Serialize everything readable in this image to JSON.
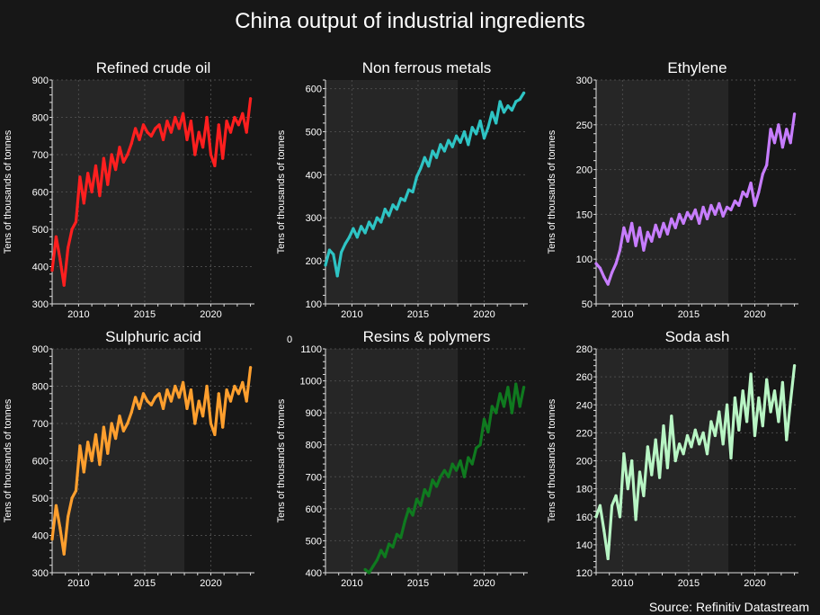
{
  "figure": {
    "title": "China output of industrial ingredients",
    "source": "Source: Refinitiv Datastream",
    "stray_label": "0",
    "background": "#171717",
    "shade_color": "#262626"
  },
  "chart_data": [
    {
      "type": "line",
      "title": "Refined crude oil",
      "ylabel": "Tens of thousands of tonnes",
      "color": "#ff1f1f",
      "xlim": [
        2008,
        2023.3
      ],
      "ylim": [
        300,
        900
      ],
      "yticks": [
        300,
        400,
        500,
        600,
        700,
        800,
        900
      ],
      "xticks": [
        2010,
        2015,
        2020
      ],
      "x": [
        2008.0,
        2008.3,
        2008.6,
        2008.9,
        2009.2,
        2009.5,
        2009.8,
        2010.1,
        2010.4,
        2010.7,
        2011.0,
        2011.3,
        2011.6,
        2011.9,
        2012.2,
        2012.5,
        2012.8,
        2013.1,
        2013.4,
        2013.7,
        2014.0,
        2014.3,
        2014.6,
        2014.9,
        2015.2,
        2015.5,
        2015.8,
        2016.1,
        2016.4,
        2016.7,
        2017.0,
        2017.3,
        2017.6,
        2017.9,
        2018.2,
        2018.5,
        2018.8,
        2019.1,
        2019.4,
        2019.7,
        2020.0,
        2020.3,
        2020.6,
        2020.9,
        2021.2,
        2021.5,
        2021.8,
        2022.1,
        2022.4,
        2022.7,
        2023.0
      ],
      "values": [
        390,
        480,
        420,
        350,
        450,
        500,
        520,
        640,
        570,
        650,
        600,
        670,
        590,
        690,
        620,
        700,
        660,
        720,
        680,
        700,
        730,
        770,
        740,
        780,
        760,
        750,
        770,
        780,
        740,
        790,
        760,
        800,
        770,
        810,
        740,
        790,
        700,
        760,
        720,
        800,
        700,
        670,
        780,
        690,
        790,
        760,
        800,
        780,
        810,
        760,
        850
      ]
    },
    {
      "type": "line",
      "title": "Non ferrous metals",
      "ylabel": "Tens of thousands of tonnes",
      "color": "#2ec4c4",
      "xlim": [
        2008,
        2023.3
      ],
      "ylim": [
        100,
        620
      ],
      "yticks": [
        100,
        200,
        300,
        400,
        500,
        600
      ],
      "xticks": [
        2010,
        2015,
        2020
      ],
      "x": [
        2008.0,
        2008.3,
        2008.6,
        2008.9,
        2009.2,
        2009.5,
        2009.8,
        2010.1,
        2010.4,
        2010.7,
        2011.0,
        2011.3,
        2011.6,
        2011.9,
        2012.2,
        2012.5,
        2012.8,
        2013.1,
        2013.4,
        2013.7,
        2014.0,
        2014.3,
        2014.6,
        2014.9,
        2015.2,
        2015.5,
        2015.8,
        2016.1,
        2016.4,
        2016.7,
        2017.0,
        2017.3,
        2017.6,
        2017.9,
        2018.2,
        2018.5,
        2018.8,
        2019.1,
        2019.4,
        2019.7,
        2020.0,
        2020.3,
        2020.6,
        2020.9,
        2021.2,
        2021.5,
        2021.8,
        2022.1,
        2022.4,
        2022.7,
        2023.0
      ],
      "values": [
        190,
        225,
        215,
        165,
        220,
        240,
        255,
        275,
        255,
        280,
        265,
        290,
        275,
        300,
        290,
        320,
        305,
        330,
        320,
        345,
        340,
        365,
        360,
        395,
        415,
        440,
        420,
        455,
        440,
        470,
        455,
        480,
        465,
        490,
        475,
        500,
        470,
        510,
        495,
        525,
        485,
        510,
        545,
        520,
        570,
        545,
        560,
        550,
        570,
        575,
        590
      ]
    },
    {
      "type": "line",
      "title": "Ethylene",
      "ylabel": "Tens of thousands of tonnes",
      "color": "#c77dff",
      "xlim": [
        2008,
        2023.3
      ],
      "ylim": [
        50,
        300
      ],
      "yticks": [
        50,
        100,
        150,
        200,
        250,
        300
      ],
      "xticks": [
        2010,
        2015,
        2020
      ],
      "x": [
        2008.0,
        2008.3,
        2008.6,
        2008.9,
        2009.2,
        2009.5,
        2009.8,
        2010.1,
        2010.4,
        2010.7,
        2011.0,
        2011.3,
        2011.6,
        2011.9,
        2012.2,
        2012.5,
        2012.8,
        2013.1,
        2013.4,
        2013.7,
        2014.0,
        2014.3,
        2014.6,
        2014.9,
        2015.2,
        2015.5,
        2015.8,
        2016.1,
        2016.4,
        2016.7,
        2017.0,
        2017.3,
        2017.6,
        2017.9,
        2018.2,
        2018.5,
        2018.8,
        2019.1,
        2019.4,
        2019.7,
        2020.0,
        2020.3,
        2020.6,
        2020.9,
        2021.2,
        2021.5,
        2021.8,
        2022.1,
        2022.4,
        2022.7,
        2023.0
      ],
      "values": [
        95,
        90,
        80,
        72,
        85,
        95,
        110,
        135,
        120,
        140,
        115,
        135,
        110,
        130,
        120,
        138,
        125,
        140,
        128,
        145,
        135,
        150,
        140,
        152,
        145,
        155,
        140,
        158,
        145,
        160,
        150,
        162,
        148,
        158,
        155,
        165,
        160,
        175,
        170,
        185,
        160,
        175,
        195,
        205,
        245,
        230,
        250,
        225,
        245,
        230,
        262
      ]
    },
    {
      "type": "line",
      "title": "Sulphuric acid",
      "ylabel": "Tens of thousands of tonnes",
      "color": "#ff9f2e",
      "xlim": [
        2008,
        2023.3
      ],
      "ylim": [
        300,
        900
      ],
      "yticks": [
        300,
        400,
        500,
        600,
        700,
        800,
        900
      ],
      "xticks": [
        2010,
        2015,
        2020
      ],
      "x": [
        2008.0,
        2008.3,
        2008.6,
        2008.9,
        2009.2,
        2009.5,
        2009.8,
        2010.1,
        2010.4,
        2010.7,
        2011.0,
        2011.3,
        2011.6,
        2011.9,
        2012.2,
        2012.5,
        2012.8,
        2013.1,
        2013.4,
        2013.7,
        2014.0,
        2014.3,
        2014.6,
        2014.9,
        2015.2,
        2015.5,
        2015.8,
        2016.1,
        2016.4,
        2016.7,
        2017.0,
        2017.3,
        2017.6,
        2017.9,
        2018.2,
        2018.5,
        2018.8,
        2019.1,
        2019.4,
        2019.7,
        2020.0,
        2020.3,
        2020.6,
        2020.9,
        2021.2,
        2021.5,
        2021.8,
        2022.1,
        2022.4,
        2022.7,
        2023.0
      ],
      "values": [
        390,
        480,
        420,
        350,
        450,
        500,
        520,
        640,
        570,
        650,
        600,
        670,
        590,
        690,
        620,
        700,
        660,
        720,
        680,
        700,
        730,
        770,
        740,
        780,
        760,
        750,
        770,
        780,
        740,
        790,
        760,
        800,
        770,
        810,
        740,
        790,
        700,
        760,
        720,
        800,
        700,
        670,
        780,
        690,
        790,
        760,
        800,
        780,
        810,
        760,
        850
      ]
    },
    {
      "type": "line",
      "title": "Resins & polymers",
      "ylabel": "Tens of thousands of tonnes",
      "color": "#0f7a1f",
      "xlim": [
        2008,
        2023.3
      ],
      "ylim": [
        400,
        1100
      ],
      "yticks": [
        400,
        500,
        600,
        700,
        800,
        900,
        1000,
        1100
      ],
      "xticks": [
        2010,
        2015,
        2020
      ],
      "x": [
        2011.0,
        2011.3,
        2011.6,
        2011.9,
        2012.2,
        2012.5,
        2012.8,
        2013.1,
        2013.4,
        2013.7,
        2014.0,
        2014.3,
        2014.6,
        2014.9,
        2015.2,
        2015.5,
        2015.8,
        2016.1,
        2016.4,
        2016.7,
        2017.0,
        2017.3,
        2017.6,
        2017.9,
        2018.2,
        2018.5,
        2018.8,
        2019.1,
        2019.4,
        2019.7,
        2020.0,
        2020.3,
        2020.6,
        2020.9,
        2021.2,
        2021.5,
        2021.8,
        2022.1,
        2022.4,
        2022.7,
        2023.0
      ],
      "values": [
        410,
        400,
        420,
        440,
        470,
        450,
        490,
        480,
        520,
        510,
        560,
        600,
        580,
        630,
        610,
        660,
        640,
        690,
        670,
        700,
        720,
        700,
        740,
        720,
        750,
        700,
        760,
        740,
        790,
        800,
        880,
        840,
        920,
        900,
        960,
        920,
        980,
        900,
        990,
        920,
        980
      ]
    },
    {
      "type": "line",
      "title": "Soda ash",
      "ylabel": "Tens of thousands of tonnes",
      "color": "#b8f5c4",
      "xlim": [
        2008,
        2023.3
      ],
      "ylim": [
        120,
        280
      ],
      "yticks": [
        120,
        140,
        160,
        180,
        200,
        220,
        240,
        260,
        280
      ],
      "xticks": [
        2010,
        2015,
        2020
      ],
      "x": [
        2008.0,
        2008.3,
        2008.6,
        2008.9,
        2009.2,
        2009.5,
        2009.8,
        2010.1,
        2010.4,
        2010.7,
        2011.0,
        2011.3,
        2011.6,
        2011.9,
        2012.2,
        2012.5,
        2012.8,
        2013.1,
        2013.4,
        2013.7,
        2014.0,
        2014.3,
        2014.6,
        2014.9,
        2015.2,
        2015.5,
        2015.8,
        2016.1,
        2016.4,
        2016.7,
        2017.0,
        2017.3,
        2017.6,
        2017.9,
        2018.2,
        2018.5,
        2018.8,
        2019.1,
        2019.4,
        2019.7,
        2020.0,
        2020.3,
        2020.6,
        2020.9,
        2021.2,
        2021.5,
        2021.8,
        2022.1,
        2022.4,
        2022.7,
        2023.0
      ],
      "values": [
        160,
        168,
        150,
        130,
        168,
        175,
        160,
        205,
        180,
        200,
        158,
        192,
        175,
        210,
        190,
        215,
        188,
        225,
        195,
        232,
        200,
        212,
        205,
        218,
        210,
        222,
        212,
        220,
        205,
        228,
        218,
        235,
        212,
        240,
        202,
        245,
        222,
        250,
        228,
        262,
        218,
        245,
        225,
        258,
        235,
        250,
        228,
        256,
        215,
        242,
        268
      ]
    }
  ]
}
